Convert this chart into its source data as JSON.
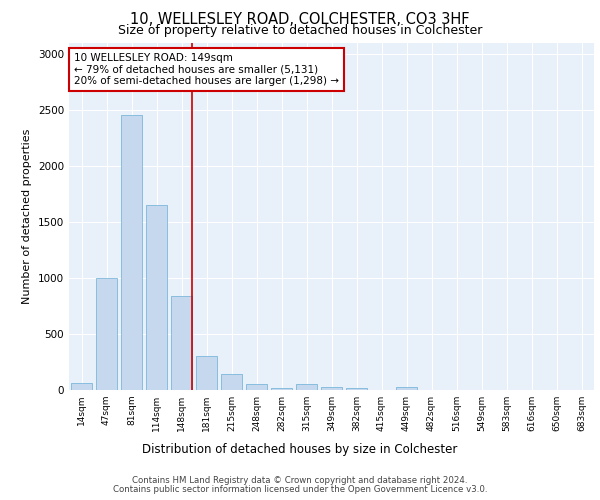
{
  "title1": "10, WELLESLEY ROAD, COLCHESTER, CO3 3HF",
  "title2": "Size of property relative to detached houses in Colchester",
  "xlabel": "Distribution of detached houses by size in Colchester",
  "ylabel": "Number of detached properties",
  "categories": [
    "14sqm",
    "47sqm",
    "81sqm",
    "114sqm",
    "148sqm",
    "181sqm",
    "215sqm",
    "248sqm",
    "282sqm",
    "315sqm",
    "349sqm",
    "382sqm",
    "415sqm",
    "449sqm",
    "482sqm",
    "516sqm",
    "549sqm",
    "583sqm",
    "616sqm",
    "650sqm",
    "683sqm"
  ],
  "values": [
    60,
    1000,
    2450,
    1650,
    840,
    300,
    140,
    50,
    15,
    50,
    25,
    15,
    0,
    30,
    0,
    0,
    0,
    0,
    0,
    0,
    0
  ],
  "bar_color": "#c5d8ee",
  "bar_edge_color": "#6aaed6",
  "highlight_index": 4,
  "highlight_line_color": "#cc0000",
  "annotation_text": "10 WELLESLEY ROAD: 149sqm\n← 79% of detached houses are smaller (5,131)\n20% of semi-detached houses are larger (1,298) →",
  "annotation_box_color": "#ffffff",
  "annotation_box_edge": "#cc0000",
  "ylim": [
    0,
    3100
  ],
  "yticks": [
    0,
    500,
    1000,
    1500,
    2000,
    2500,
    3000
  ],
  "footer1": "Contains HM Land Registry data © Crown copyright and database right 2024.",
  "footer2": "Contains public sector information licensed under the Open Government Licence v3.0.",
  "plot_bg_color": "#e8f0fa"
}
